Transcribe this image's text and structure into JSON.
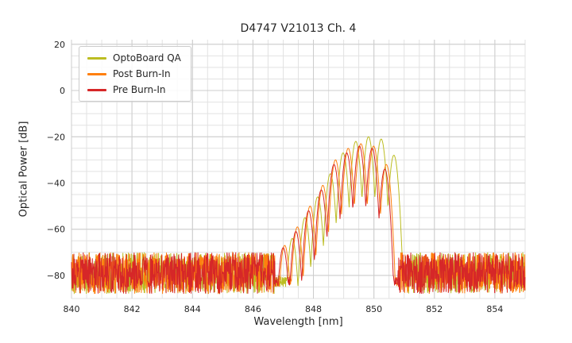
{
  "chart_data": {
    "type": "line",
    "title": "D4747 V21013 Ch. 4",
    "xlabel": "Wavelength [nm]",
    "ylabel": "Optical Power [dB]",
    "xlim": [
      840,
      855
    ],
    "ylim": [
      -90,
      22
    ],
    "xticks": [
      840,
      842,
      844,
      846,
      848,
      850,
      852,
      854
    ],
    "xticklabels": [
      "840",
      "842",
      "844",
      "846",
      "848",
      "850",
      "852",
      "854"
    ],
    "yticks": [
      20,
      0,
      -20,
      -40,
      -60,
      -80
    ],
    "yticklabels": [
      "20",
      "0",
      "−20",
      "−40",
      "−60",
      "−80"
    ],
    "minor_x_step": 0.5,
    "minor_y_step": 5,
    "grid": true,
    "legend_position": "upper left",
    "series": [
      {
        "name": "OptoBoard QA",
        "color": "#bcbd22",
        "seed": 7,
        "noise_regions": [
          [
            840,
            846.72
          ],
          [
            851.12,
            855
          ]
        ],
        "noise_top_db": -70,
        "noise_span_db": 18,
        "valley_floor_db": -80,
        "valley_jitter_db": 5,
        "mode_spacing_nm": 0.42,
        "mode_dip_db": 26,
        "modes": [
          [
            847.3,
            -64
          ],
          [
            847.72,
            -55
          ],
          [
            848.14,
            -46
          ],
          [
            848.56,
            -36
          ],
          [
            848.98,
            -27
          ],
          [
            849.4,
            -22
          ],
          [
            849.82,
            -20
          ],
          [
            850.24,
            -21
          ],
          [
            850.66,
            -28
          ]
        ]
      },
      {
        "name": "Post Burn-In",
        "color": "#ff7f0e",
        "seed": 13,
        "noise_regions": [
          [
            840,
            846.72
          ],
          [
            850.85,
            855
          ]
        ],
        "noise_top_db": -70,
        "noise_span_db": 18,
        "valley_floor_db": -80,
        "valley_jitter_db": 5,
        "mode_spacing_nm": 0.42,
        "mode_dip_db": 26,
        "modes": [
          [
            847.05,
            -67
          ],
          [
            847.47,
            -59
          ],
          [
            847.89,
            -50
          ],
          [
            848.31,
            -41
          ],
          [
            848.73,
            -30
          ],
          [
            849.15,
            -25
          ],
          [
            849.57,
            -23
          ],
          [
            849.99,
            -24
          ],
          [
            850.41,
            -32
          ]
        ]
      },
      {
        "name": "Pre Burn-In",
        "color": "#d62728",
        "seed": 3,
        "noise_regions": [
          [
            840,
            846.72
          ],
          [
            850.8,
            855
          ]
        ],
        "noise_top_db": -70,
        "noise_span_db": 18,
        "valley_floor_db": -80,
        "valley_jitter_db": 5,
        "mode_spacing_nm": 0.42,
        "mode_dip_db": 26,
        "modes": [
          [
            847.0,
            -68
          ],
          [
            847.42,
            -61
          ],
          [
            847.84,
            -52
          ],
          [
            848.26,
            -43
          ],
          [
            848.68,
            -32
          ],
          [
            849.1,
            -27
          ],
          [
            849.52,
            -24
          ],
          [
            849.94,
            -25
          ],
          [
            850.36,
            -34
          ]
        ]
      }
    ]
  }
}
